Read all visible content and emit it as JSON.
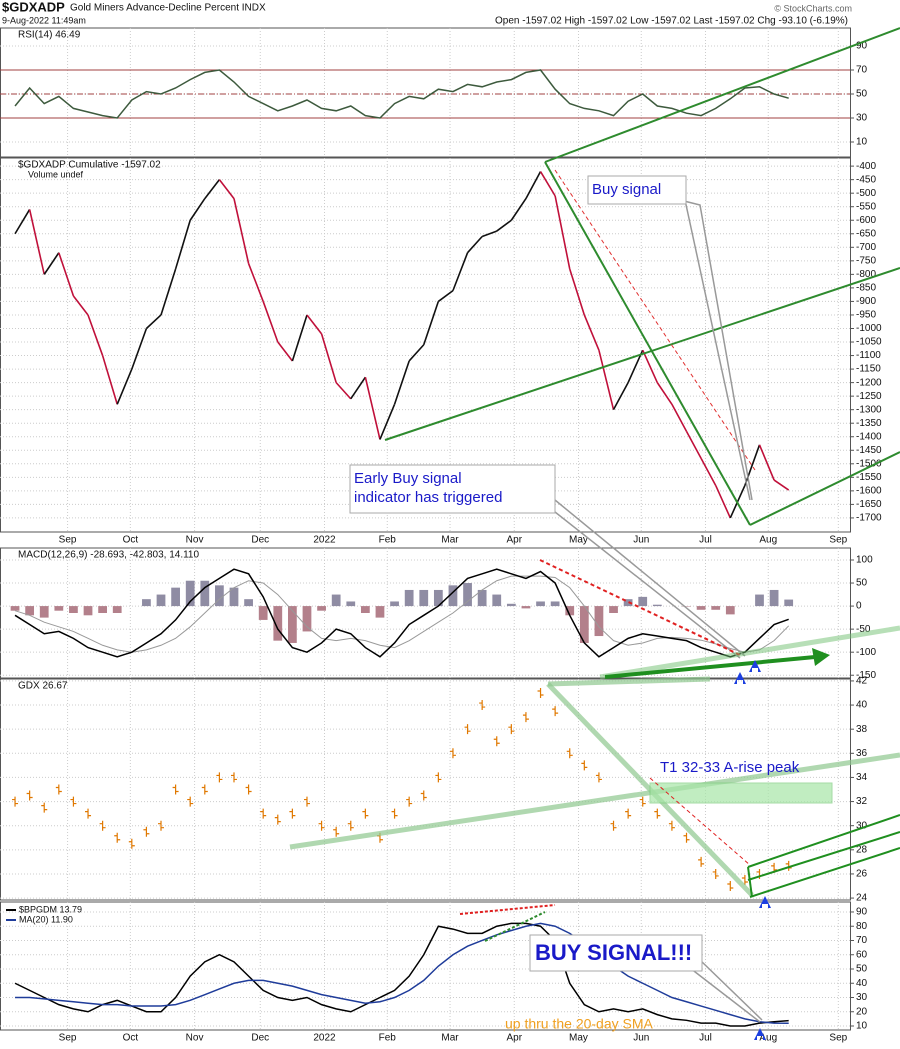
{
  "header": {
    "title": "$GDXADP",
    "subtitle": "Gold Miners Advance-Decline Percent INDX",
    "date": "9-Aug-2022 11:49am",
    "quote": "Open -1597.02  High -1597.02  Low -1597.02  Last -1597.02  Chg -93.10 (-6.19%)",
    "copyright": "© StockCharts.com"
  },
  "chart_data": [
    {
      "type": "line",
      "title": "RSI(14) 46.49",
      "grid": true,
      "x": [
        0,
        1,
        2,
        3,
        4,
        5,
        6,
        7,
        8,
        9,
        10,
        11,
        12,
        13,
        14,
        15,
        16,
        17,
        18,
        19,
        20,
        21,
        22,
        23,
        24,
        25,
        26,
        27,
        28,
        29,
        30,
        31,
        32,
        33,
        34,
        35,
        36,
        37,
        38,
        39,
        40,
        41,
        42,
        43,
        44,
        45,
        46,
        47,
        48,
        49,
        50,
        51,
        52,
        53
      ],
      "xlim": [
        -1.03,
        57.2
      ],
      "xticks": [
        {
          "value": 3.6,
          "label": "Sep"
        },
        {
          "value": 7.9,
          "label": "Oct"
        },
        {
          "value": 12.3,
          "label": "Nov"
        },
        {
          "value": 16.8,
          "label": "Dec"
        },
        {
          "value": 21.2,
          "label": "2022"
        },
        {
          "value": 25.5,
          "label": "Feb"
        },
        {
          "value": 29.8,
          "label": "Mar"
        },
        {
          "value": 34.2,
          "label": "Apr"
        },
        {
          "value": 38.6,
          "label": "May"
        },
        {
          "value": 42.9,
          "label": "Jun"
        },
        {
          "value": 47.3,
          "label": "Jul"
        },
        {
          "value": 51.6,
          "label": "Aug"
        },
        {
          "value": 56.4,
          "label": "Sep"
        }
      ],
      "ylim": [
        -2.5,
        105
      ],
      "yticks": [
        90,
        70,
        50,
        30,
        10
      ],
      "reference_lines": [
        70,
        50,
        30
      ],
      "reference_color": "#a04040",
      "series": [
        {
          "color": "#3d5a3d",
          "values": [
            40,
            55,
            42,
            48,
            38,
            35,
            32,
            30,
            45,
            52,
            50,
            55,
            62,
            68,
            70,
            60,
            48,
            42,
            36,
            40,
            45,
            38,
            36,
            40,
            32,
            30,
            42,
            48,
            46,
            54,
            52,
            58,
            56,
            60,
            62,
            68,
            70,
            54,
            42,
            38,
            36,
            32,
            44,
            50,
            40,
            38,
            34,
            32,
            38,
            46,
            55,
            56,
            50,
            46.49
          ]
        }
      ]
    },
    {
      "type": "line",
      "title": "$GDXADP Cumulative -1597.02",
      "subtitle": "Volume undef",
      "grid": true,
      "xaxis_labels": true,
      "x": [
        0,
        1,
        2,
        3,
        4,
        5,
        6,
        7,
        8,
        9,
        10,
        11,
        12,
        13,
        14,
        15,
        16,
        17,
        18,
        19,
        20,
        21,
        22,
        23,
        24,
        25,
        26,
        27,
        28,
        29,
        30,
        31,
        32,
        33,
        34,
        35,
        36,
        37,
        38,
        39,
        40,
        41,
        42,
        43,
        44,
        45,
        46,
        47,
        48,
        49,
        50,
        51,
        52,
        53
      ],
      "xlim": [
        -1.03,
        57.2
      ],
      "xticks": [
        {
          "value": 3.6,
          "label": "Sep"
        },
        {
          "value": 7.9,
          "label": "Oct"
        },
        {
          "value": 12.3,
          "label": "Nov"
        },
        {
          "value": 16.8,
          "label": "Dec"
        },
        {
          "value": 21.2,
          "label": "2022"
        },
        {
          "value": 25.5,
          "label": "Feb"
        },
        {
          "value": 29.8,
          "label": "Mar"
        },
        {
          "value": 34.2,
          "label": "Apr"
        },
        {
          "value": 38.6,
          "label": "May"
        },
        {
          "value": 42.9,
          "label": "Jun"
        },
        {
          "value": 47.3,
          "label": "Jul"
        },
        {
          "value": 51.6,
          "label": "Aug"
        },
        {
          "value": 56.4,
          "label": "Sep"
        }
      ],
      "ylim": [
        -1752,
        -370
      ],
      "yticks": [
        -400,
        -450,
        -500,
        -550,
        -600,
        -650,
        -700,
        -750,
        -800,
        -850,
        -900,
        -950,
        -1000,
        -1050,
        -1100,
        -1150,
        -1200,
        -1250,
        -1300,
        -1350,
        -1400,
        -1450,
        -1500,
        -1550,
        -1600,
        -1650,
        -1700
      ],
      "annotations": [
        "Buy signal",
        "Early Buy signal",
        "indicator has triggered"
      ],
      "series": [
        {
          "up_color": "#111111",
          "down_color": "#c0103a",
          "values": [
            -650,
            -560,
            -800,
            -720,
            -880,
            -950,
            -1100,
            -1280,
            -1150,
            -1000,
            -950,
            -780,
            -600,
            -520,
            -450,
            -520,
            -760,
            -900,
            -1050,
            -1120,
            -950,
            -1020,
            -1200,
            -1260,
            -1180,
            -1410,
            -1280,
            -1120,
            -1060,
            -900,
            -860,
            -720,
            -660,
            -640,
            -600,
            -520,
            -420,
            -510,
            -780,
            -950,
            -1080,
            -1300,
            -1200,
            -1080,
            -1200,
            -1280,
            -1380,
            -1480,
            -1580,
            -1700,
            -1580,
            -1430,
            -1560,
            -1597.02
          ]
        }
      ]
    },
    {
      "type": "macd",
      "title": "MACD(12,26,9) -28.693, -42.803, 14.110",
      "grid": true,
      "x": [
        0,
        1,
        2,
        3,
        4,
        5,
        6,
        7,
        8,
        9,
        10,
        11,
        12,
        13,
        14,
        15,
        16,
        17,
        18,
        19,
        20,
        21,
        22,
        23,
        24,
        25,
        26,
        27,
        28,
        29,
        30,
        31,
        32,
        33,
        34,
        35,
        36,
        37,
        38,
        39,
        40,
        41,
        42,
        43,
        44,
        45,
        46,
        47,
        48,
        49,
        50,
        51,
        52,
        53
      ],
      "xlim": [
        -1.03,
        57.2
      ],
      "xticks": [
        {
          "value": 3.6,
          "label": "Sep"
        },
        {
          "value": 7.9,
          "label": "Oct"
        },
        {
          "value": 12.3,
          "label": "Nov"
        },
        {
          "value": 16.8,
          "label": "Dec"
        },
        {
          "value": 21.2,
          "label": "2022"
        },
        {
          "value": 25.5,
          "label": "Feb"
        },
        {
          "value": 29.8,
          "label": "Mar"
        },
        {
          "value": 34.2,
          "label": "Apr"
        },
        {
          "value": 38.6,
          "label": "May"
        },
        {
          "value": 42.9,
          "label": "Jun"
        },
        {
          "value": 47.3,
          "label": "Jul"
        },
        {
          "value": 51.6,
          "label": "Aug"
        },
        {
          "value": 56.4,
          "label": "Sep"
        }
      ],
      "ylim": [
        -156,
        126
      ],
      "yticks": [
        100,
        50,
        0,
        -50,
        -100,
        -150
      ],
      "series": [
        {
          "style": "histogram",
          "pos_color": "#8f8ca3",
          "neg_color": "#b3808b",
          "values": [
            -10,
            -20,
            -25,
            -10,
            -15,
            -20,
            -15,
            -15,
            0,
            15,
            25,
            40,
            55,
            55,
            45,
            40,
            15,
            -30,
            -75,
            -80,
            -55,
            -10,
            25,
            10,
            -15,
            -25,
            10,
            35,
            35,
            35,
            45,
            50,
            35,
            25,
            5,
            -5,
            10,
            10,
            -20,
            -80,
            -65,
            -15,
            15,
            20,
            3,
            0,
            -1,
            -8,
            -8,
            -18,
            0,
            25,
            35,
            14.11
          ]
        },
        {
          "style": "line",
          "color": "#999999",
          "values": [
            -10,
            -20,
            -35,
            -45,
            -55,
            -70,
            -85,
            -95,
            -100,
            -95,
            -85,
            -70,
            -45,
            -15,
            15,
            40,
            55,
            50,
            25,
            -10,
            -45,
            -70,
            -75,
            -70,
            -75,
            -85,
            -90,
            -75,
            -55,
            -35,
            -15,
            10,
            35,
            55,
            65,
            65,
            65,
            62,
            40,
            0,
            -45,
            -75,
            -85,
            -80,
            -70,
            -68,
            -70,
            -74,
            -82,
            -92,
            -100,
            -95,
            -75,
            -42.803
          ]
        },
        {
          "style": "line",
          "color": "#000000",
          "values": [
            -20,
            -40,
            -60,
            -55,
            -70,
            -90,
            -100,
            -110,
            -100,
            -80,
            -60,
            -30,
            10,
            40,
            60,
            80,
            70,
            20,
            -50,
            -90,
            -100,
            -80,
            -50,
            -60,
            -90,
            -110,
            -80,
            -40,
            -20,
            0,
            30,
            60,
            70,
            80,
            70,
            60,
            75,
            50,
            -20,
            -80,
            -110,
            -90,
            -70,
            -60,
            -65,
            -70,
            -75,
            -90,
            -100,
            -110,
            -100,
            -70,
            -40,
            -28.693
          ]
        }
      ]
    },
    {
      "type": "ohlc",
      "title": "GDX 26.67",
      "grid": true,
      "x": [
        0,
        1,
        2,
        3,
        4,
        5,
        6,
        7,
        8,
        9,
        10,
        11,
        12,
        13,
        14,
        15,
        16,
        17,
        18,
        19,
        20,
        21,
        22,
        23,
        24,
        25,
        26,
        27,
        28,
        29,
        30,
        31,
        32,
        33,
        34,
        35,
        36,
        37,
        38,
        39,
        40,
        41,
        42,
        43,
        44,
        45,
        46,
        47,
        48,
        49,
        50,
        51,
        52,
        53
      ],
      "xlim": [
        -1.03,
        57.2
      ],
      "xticks": [
        {
          "value": 3.6,
          "label": "Sep"
        },
        {
          "value": 7.9,
          "label": "Oct"
        },
        {
          "value": 12.3,
          "label": "Nov"
        },
        {
          "value": 16.8,
          "label": "Dec"
        },
        {
          "value": 21.2,
          "label": "2022"
        },
        {
          "value": 25.5,
          "label": "Feb"
        },
        {
          "value": 29.8,
          "label": "Mar"
        },
        {
          "value": 34.2,
          "label": "Apr"
        },
        {
          "value": 38.6,
          "label": "May"
        },
        {
          "value": 42.9,
          "label": "Jun"
        },
        {
          "value": 47.3,
          "label": "Jul"
        },
        {
          "value": 51.6,
          "label": "Aug"
        },
        {
          "value": 56.4,
          "label": "Sep"
        }
      ],
      "ylim": [
        23.84,
        42.16
      ],
      "yticks": [
        42,
        40,
        38,
        36,
        34,
        32,
        30,
        28,
        26,
        24
      ],
      "annotations": [
        "T1 32-33 A-rise peak"
      ],
      "series": [
        {
          "color": "#e07800",
          "values": [
            32,
            32.5,
            31.5,
            33,
            32,
            31,
            30,
            29,
            28.5,
            29.5,
            30,
            33,
            32,
            33,
            34,
            34,
            33,
            31,
            30.5,
            31,
            32,
            30,
            29.5,
            30,
            31,
            29,
            31,
            32,
            32.5,
            34,
            36,
            38,
            40,
            37,
            38,
            39,
            41,
            39.5,
            36,
            35,
            34,
            30,
            31,
            32,
            31,
            30,
            29,
            27,
            26,
            25,
            25.5,
            26,
            26.5,
            26.67
          ]
        }
      ]
    },
    {
      "type": "line",
      "grid": true,
      "xaxis_labels": true,
      "x": [
        0,
        1,
        2,
        3,
        4,
        5,
        6,
        7,
        8,
        9,
        10,
        11,
        12,
        13,
        14,
        15,
        16,
        17,
        18,
        19,
        20,
        21,
        22,
        23,
        24,
        25,
        26,
        27,
        28,
        29,
        30,
        31,
        32,
        33,
        34,
        35,
        36,
        37,
        38,
        39,
        40,
        41,
        42,
        43,
        44,
        45,
        46,
        47,
        48,
        49,
        50,
        51,
        52,
        53
      ],
      "xlim": [
        -1.03,
        57.2
      ],
      "xticks": [
        {
          "value": 3.6,
          "label": "Sep"
        },
        {
          "value": 7.9,
          "label": "Oct"
        },
        {
          "value": 12.3,
          "label": "Nov"
        },
        {
          "value": 16.8,
          "label": "Dec"
        },
        {
          "value": 21.2,
          "label": "2022"
        },
        {
          "value": 25.5,
          "label": "Feb"
        },
        {
          "value": 29.8,
          "label": "Mar"
        },
        {
          "value": 34.2,
          "label": "Apr"
        },
        {
          "value": 38.6,
          "label": "May"
        },
        {
          "value": 42.9,
          "label": "Jun"
        },
        {
          "value": 47.3,
          "label": "Jul"
        },
        {
          "value": 51.6,
          "label": "Aug"
        },
        {
          "value": 56.4,
          "label": "Sep"
        }
      ],
      "ylim": [
        7.2,
        97
      ],
      "yticks": [
        90,
        80,
        70,
        60,
        50,
        40,
        30,
        20,
        10
      ],
      "annotations": [
        "BUY SIGNAL!!!",
        "up thru the 20-day SMA"
      ],
      "series": [
        {
          "name": "$BPGDM 13.79",
          "color": "#000000",
          "values": [
            40,
            35,
            30,
            25,
            22,
            20,
            25,
            28,
            24,
            20,
            20,
            30,
            45,
            55,
            60,
            55,
            45,
            35,
            30,
            28,
            30,
            25,
            22,
            20,
            25,
            30,
            35,
            45,
            60,
            80,
            78,
            75,
            75,
            80,
            82,
            82,
            80,
            70,
            40,
            25,
            20,
            22,
            20,
            22,
            18,
            15,
            14,
            12,
            12,
            10,
            10,
            12,
            13,
            13.79
          ]
        },
        {
          "name": "MA(20) 11.90",
          "color": "#1f3c9a",
          "values": [
            30,
            30,
            29,
            28,
            27,
            26,
            25,
            25,
            24,
            24,
            24,
            25,
            28,
            32,
            36,
            40,
            42,
            42,
            40,
            38,
            35,
            32,
            30,
            28,
            26,
            27,
            30,
            35,
            42,
            52,
            60,
            66,
            70,
            74,
            77,
            80,
            82,
            80,
            75,
            68,
            60,
            52,
            45,
            40,
            35,
            30,
            27,
            24,
            21,
            18,
            15,
            13,
            12,
            11.9
          ]
        }
      ]
    }
  ]
}
